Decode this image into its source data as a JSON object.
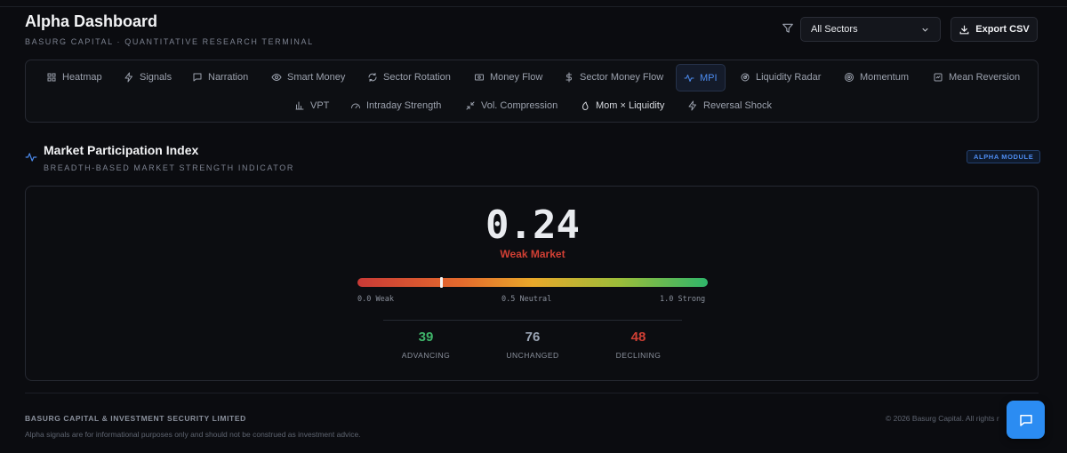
{
  "header": {
    "title": "Alpha Dashboard",
    "subtitle": "BASURG CAPITAL · QUANTITATIVE RESEARCH TERMINAL",
    "sector_filter": "All Sectors",
    "export_label": "Export CSV"
  },
  "tabs": [
    {
      "label": "Heatmap",
      "icon": "grid-icon"
    },
    {
      "label": "Signals",
      "icon": "lightning-icon"
    },
    {
      "label": "Narration",
      "icon": "message-icon"
    },
    {
      "label": "Smart Money",
      "icon": "eye-icon"
    },
    {
      "label": "Sector Rotation",
      "icon": "refresh-icon"
    },
    {
      "label": "Money Flow",
      "icon": "banknote-icon"
    },
    {
      "label": "Sector Money Flow",
      "icon": "dollar-icon"
    },
    {
      "label": "MPI",
      "icon": "pulse-icon",
      "active": true
    },
    {
      "label": "Liquidity Radar",
      "icon": "radar-icon"
    },
    {
      "label": "Momentum",
      "icon": "target-icon"
    },
    {
      "label": "Mean Reversion",
      "icon": "box-icon"
    },
    {
      "label": "VPT",
      "icon": "bars-icon"
    },
    {
      "label": "Intraday Strength",
      "icon": "gauge-icon"
    },
    {
      "label": "Vol. Compression",
      "icon": "compress-icon"
    },
    {
      "label": "Mom × Liquidity",
      "icon": "flame-icon"
    },
    {
      "label": "Reversal Shock",
      "icon": "lightning-icon"
    }
  ],
  "section": {
    "title": "Market Participation Index",
    "subtitle": "BREADTH-BASED MARKET STRENGTH INDICATOR",
    "badge": "ALPHA MODULE"
  },
  "mpi": {
    "value": "0.24",
    "fraction": 0.24,
    "status": "Weak Market",
    "status_color": "#d13f34",
    "scale_min": "0.0 Weak",
    "scale_mid": "0.5 Neutral",
    "scale_max": "1.0 Strong"
  },
  "stats": {
    "advancing": {
      "value": "39",
      "label": "ADVANCING",
      "color": "#3fb56a"
    },
    "unchanged": {
      "value": "76",
      "label": "UNCHANGED",
      "color": "#9aa4b4"
    },
    "declining": {
      "value": "48",
      "label": "DECLINING",
      "color": "#d13f34"
    }
  },
  "footer": {
    "company": "BASURG CAPITAL & INVESTMENT SECURITY LIMITED",
    "disclaimer": "Alpha signals are for informational purposes only and should not be construed as investment advice.",
    "copyright": "© 2026 Basurg Capital. All rights r"
  },
  "colors": {
    "accent": "#4d8cf0",
    "chat_button": "#2b8cf2"
  }
}
